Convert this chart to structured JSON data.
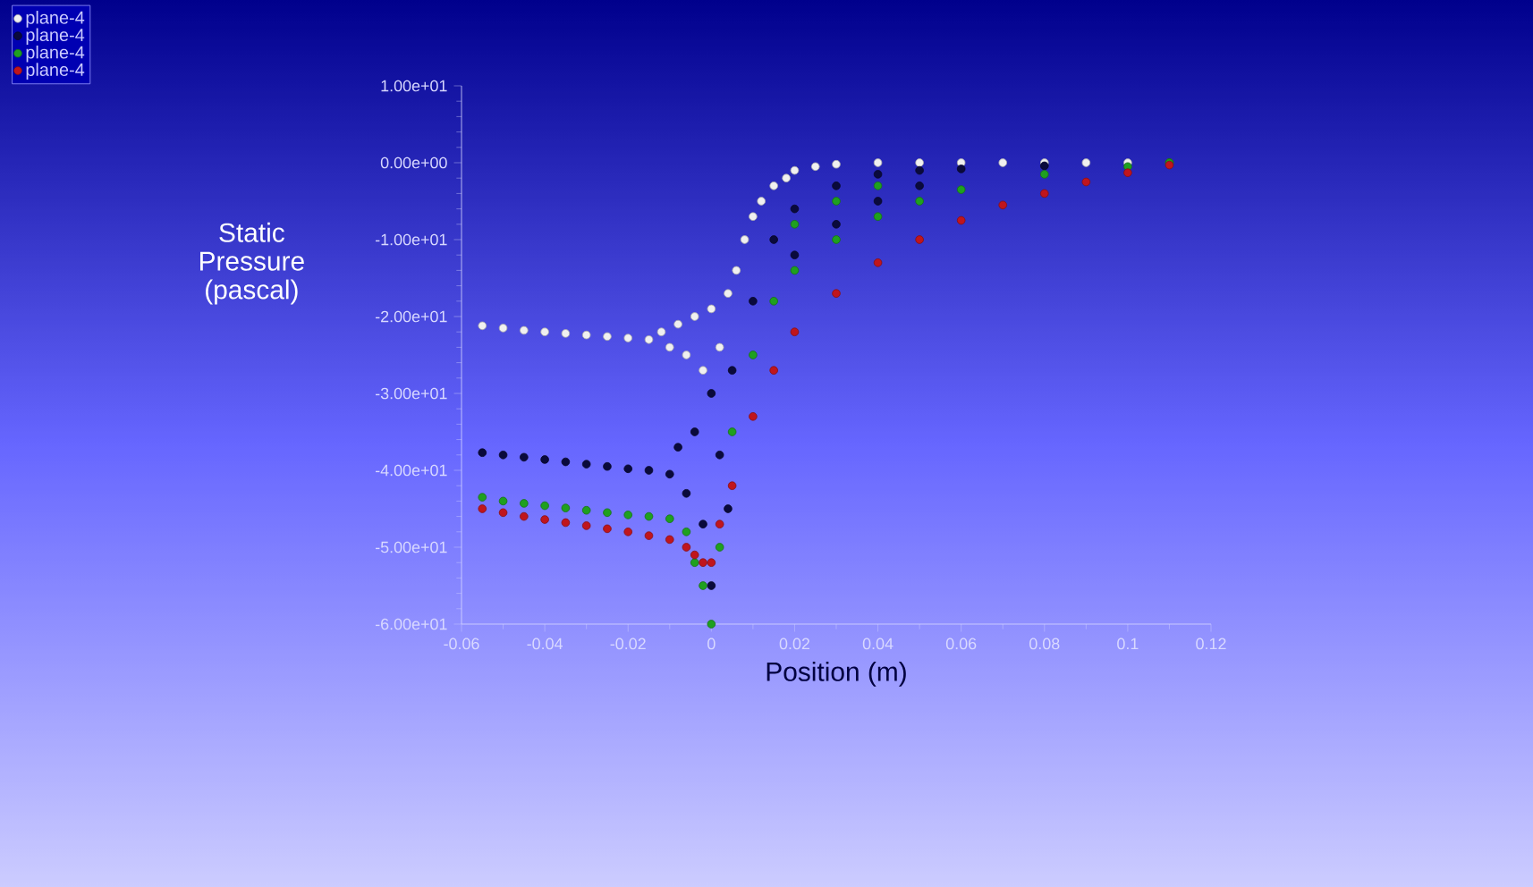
{
  "chart_data": {
    "type": "scatter",
    "xlabel": "Position (m)",
    "ylabel": "Static Pressure (pascal)",
    "xlim": [
      -0.06,
      0.12
    ],
    "ylim": [
      -60,
      10
    ],
    "xticks": [
      -0.06,
      -0.04,
      -0.02,
      0,
      0.02,
      0.04,
      0.06,
      0.08,
      0.1,
      0.12
    ],
    "yticks": [
      {
        "value": 10,
        "label": "1.00e+01"
      },
      {
        "value": 0,
        "label": "0.00e+00"
      },
      {
        "value": -10,
        "label": "-1.00e+01"
      },
      {
        "value": -20,
        "label": "-2.00e+01"
      },
      {
        "value": -30,
        "label": "-3.00e+01"
      },
      {
        "value": -40,
        "label": "-4.00e+01"
      },
      {
        "value": -50,
        "label": "-5.00e+01"
      },
      {
        "value": -60,
        "label": "-6.00e+01"
      }
    ],
    "marker": "circle",
    "grid": false,
    "legend": "top left",
    "series": [
      {
        "name": "plane-4",
        "color": "#f0f0f0",
        "x": [
          -0.055,
          -0.05,
          -0.045,
          -0.04,
          -0.035,
          -0.03,
          -0.025,
          -0.02,
          -0.015,
          -0.012,
          -0.01,
          -0.008,
          -0.006,
          -0.004,
          -0.002,
          0,
          0.002,
          0.004,
          0.006,
          0.008,
          0.01,
          0.012,
          0.015,
          0.018,
          0.02,
          0.025,
          0.03,
          0.04,
          0.05,
          0.06,
          0.07,
          0.08,
          0.09,
          0.1,
          0.11
        ],
        "values": [
          -21.2,
          -21.5,
          -21.8,
          -22,
          -22.2,
          -22.4,
          -22.6,
          -22.8,
          -23,
          -22,
          -24,
          -21,
          -25,
          -20,
          -27,
          -19,
          -24,
          -17,
          -14,
          -10,
          -7,
          -5,
          -3,
          -2,
          -1,
          -0.5,
          -0.2,
          0,
          0,
          0,
          0,
          0,
          0,
          0,
          0
        ]
      },
      {
        "name": "plane-4",
        "color": "#0a0a3c",
        "x": [
          -0.055,
          -0.05,
          -0.045,
          -0.04,
          -0.035,
          -0.03,
          -0.025,
          -0.02,
          -0.015,
          -0.01,
          -0.008,
          -0.006,
          -0.004,
          -0.002,
          0,
          0,
          0.002,
          0.004,
          0.005,
          0.01,
          0.015,
          0.02,
          0.02,
          0.03,
          0.03,
          0.04,
          0.04,
          0.05,
          0.05,
          0.06,
          0.08,
          0.1,
          0.11
        ],
        "values": [
          -37.7,
          -38,
          -38.3,
          -38.6,
          -38.9,
          -39.2,
          -39.5,
          -39.8,
          -40,
          -40.5,
          -37,
          -43,
          -35,
          -47,
          -30,
          -55,
          -38,
          -45,
          -27,
          -18,
          -10,
          -6,
          -12,
          -3,
          -8,
          -1.5,
          -5,
          -1,
          -3,
          -0.8,
          -0.4,
          null,
          0
        ]
      },
      {
        "name": "plane-4",
        "color": "#1fa01f",
        "x": [
          -0.055,
          -0.05,
          -0.045,
          -0.04,
          -0.035,
          -0.03,
          -0.025,
          -0.02,
          -0.015,
          -0.01,
          -0.006,
          -0.004,
          -0.002,
          0,
          0.002,
          0.005,
          0.01,
          0.015,
          0.02,
          0.02,
          0.03,
          0.03,
          0.04,
          0.04,
          0.05,
          0.06,
          0.08,
          0.1,
          0.11
        ],
        "values": [
          -43.5,
          -44,
          -44.3,
          -44.6,
          -44.9,
          -45.2,
          -45.5,
          -45.8,
          -46,
          -46.3,
          -48,
          -52,
          -55,
          -60,
          -50,
          -35,
          -25,
          -18,
          -14,
          -8,
          -10,
          -5,
          -7,
          -3,
          -5,
          -3.5,
          -1.5,
          -0.5,
          0
        ]
      },
      {
        "name": "plane-4",
        "color": "#c0151d",
        "x": [
          -0.055,
          -0.05,
          -0.045,
          -0.04,
          -0.035,
          -0.03,
          -0.025,
          -0.02,
          -0.015,
          -0.01,
          -0.006,
          -0.004,
          -0.002,
          0,
          0.002,
          0.005,
          0.01,
          0.015,
          0.02,
          0.03,
          0.04,
          0.05,
          0.06,
          0.07,
          0.08,
          0.09,
          0.1,
          0.11
        ],
        "values": [
          -45,
          -45.5,
          -46,
          -46.4,
          -46.8,
          -47.2,
          -47.6,
          -48,
          -48.5,
          -49,
          -50,
          -51,
          -52,
          -52,
          -47,
          -42,
          -33,
          -27,
          -22,
          -17,
          -13,
          -10,
          -7.5,
          -5.5,
          -4,
          -2.5,
          -1.3,
          -0.3
        ]
      }
    ]
  }
}
